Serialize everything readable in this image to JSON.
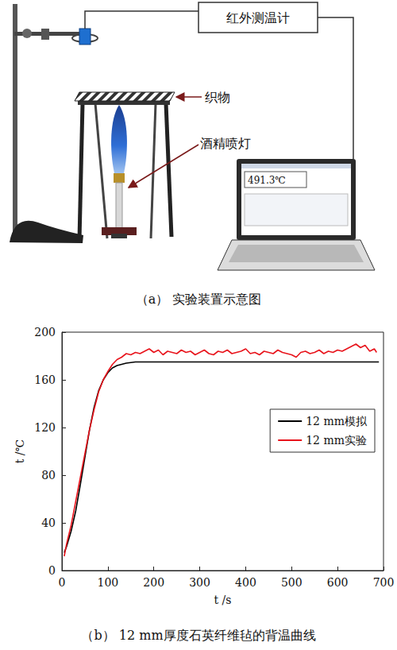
{
  "diagram": {
    "instrument": "红外测温计",
    "fabric": "织物",
    "lamp": "酒精喷灯",
    "screen_reading": "491.3℃",
    "caption": "（a） 实验装置示意图"
  },
  "chart_data": {
    "type": "line",
    "title": "（b） 12 mm厚度石英纤维毡的背温曲线",
    "x_label": "t /s",
    "y_label": "t /℃",
    "xlim": [
      0,
      700
    ],
    "xticks": [
      0,
      100,
      200,
      300,
      400,
      500,
      600,
      700
    ],
    "ylim": [
      0,
      200
    ],
    "yticks": [
      0,
      40,
      80,
      120,
      160,
      200
    ],
    "grid": false,
    "legend": "right",
    "series": [
      {
        "name": "12 mm模拟",
        "color": "#000000",
        "marker": "none",
        "line_style": "solid",
        "x": [
          5,
          10,
          20,
          30,
          40,
          50,
          60,
          70,
          80,
          90,
          100,
          110,
          120,
          140,
          160,
          200,
          300,
          400,
          500,
          600,
          690
        ],
        "values": [
          15,
          20,
          33,
          50,
          72,
          95,
          118,
          137,
          151,
          160,
          166,
          170,
          172,
          174,
          175,
          175,
          175,
          175,
          175,
          175,
          175
        ]
      },
      {
        "name": "12 mm实验",
        "color": "#e8141c",
        "marker": "none",
        "line_style": "solid",
        "x": [
          5,
          10,
          20,
          30,
          40,
          50,
          60,
          70,
          80,
          90,
          100,
          110,
          120,
          130,
          140,
          150,
          160,
          170,
          180,
          190,
          200,
          210,
          220,
          230,
          240,
          250,
          260,
          270,
          280,
          290,
          300,
          310,
          320,
          330,
          340,
          350,
          360,
          370,
          380,
          390,
          400,
          410,
          420,
          430,
          440,
          450,
          460,
          470,
          480,
          490,
          500,
          510,
          520,
          530,
          540,
          550,
          560,
          570,
          580,
          590,
          600,
          610,
          620,
          630,
          640,
          650,
          660,
          670,
          680,
          685
        ],
        "values": [
          12,
          22,
          38,
          58,
          78,
          98,
          118,
          135,
          150,
          160,
          167,
          173,
          177,
          179,
          182,
          181,
          183,
          182,
          184,
          186,
          183,
          185,
          181,
          184,
          183,
          182,
          185,
          183,
          184,
          181,
          183,
          185,
          182,
          181,
          184,
          183,
          185,
          182,
          183,
          184,
          186,
          182,
          183,
          181,
          184,
          183,
          182,
          185,
          183,
          182,
          181,
          179,
          183,
          184,
          182,
          183,
          185,
          182,
          184,
          183,
          185,
          184,
          186,
          188,
          190,
          187,
          189,
          184,
          186,
          183
        ]
      }
    ]
  }
}
